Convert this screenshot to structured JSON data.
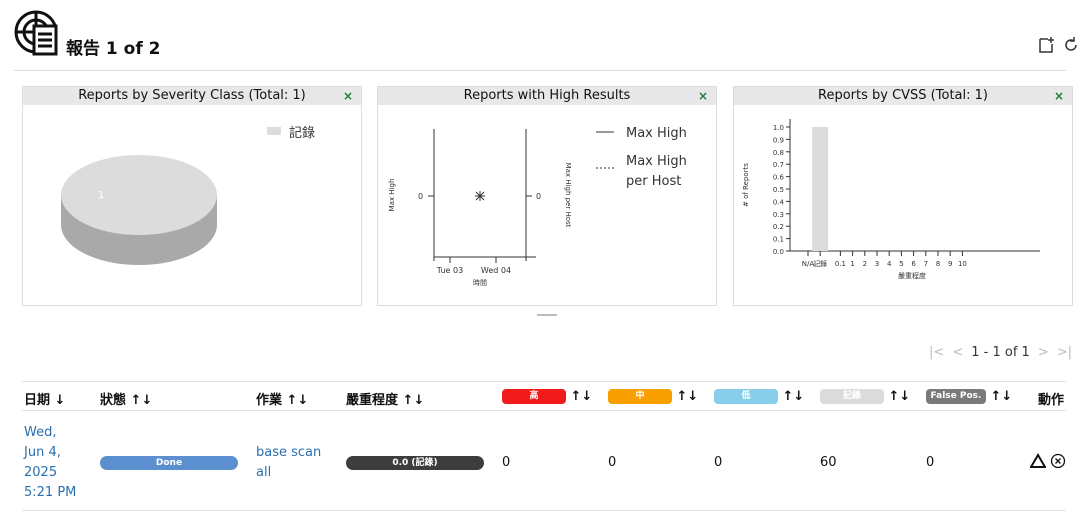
{
  "header": {
    "title": "報告 1 of 2",
    "logo_icon": "report-radar-icon",
    "icons": [
      "new-note-icon",
      "refresh-icon"
    ]
  },
  "panels": [
    {
      "title": "Reports by Severity Class (Total: 1)",
      "close": "×",
      "chart_data": {
        "type": "pie",
        "title": "Reports by Severity Class (Total: 1)",
        "slices": [
          {
            "label": "記錄",
            "value": 1
          }
        ],
        "legend": [
          "記錄"
        ],
        "colors": [
          "#d8d8d8"
        ]
      }
    },
    {
      "title": "Reports with High Results",
      "close": "×",
      "chart_data": {
        "type": "line",
        "title": "Reports with High Results",
        "xlabel": "時間",
        "ylabel": "Max High",
        "y2label": "Max High per Host",
        "x_ticks": [
          "Tue 03",
          "Wed 04"
        ],
        "y_ticks": [
          "0"
        ],
        "y2_ticks": [
          "0"
        ],
        "series": [
          {
            "name": "Max High",
            "values": [
              0
            ]
          },
          {
            "name": "Max High per Host",
            "values": [
              0
            ]
          }
        ],
        "legend": [
          "Max High",
          "Max High per Host"
        ]
      }
    },
    {
      "title": "Reports by CVSS (Total: 1)",
      "close": "×",
      "chart_data": {
        "type": "bar",
        "title": "Reports by CVSS (Total: 1)",
        "xlabel": "嚴重程度",
        "ylabel": "# of Reports",
        "categories": [
          "N/A",
          "記錄",
          "0.1",
          "1",
          "2",
          "3",
          "4",
          "5",
          "6",
          "7",
          "8",
          "9",
          "10"
        ],
        "values": [
          0,
          1,
          0,
          0,
          0,
          0,
          0,
          0,
          0,
          0,
          0,
          0,
          0
        ],
        "y_ticks": [
          "0.0",
          "0.1",
          "0.2",
          "0.3",
          "0.4",
          "0.5",
          "0.6",
          "0.7",
          "0.8",
          "0.9",
          "1.0"
        ],
        "ylim": [
          0,
          1.0
        ]
      }
    }
  ],
  "pagination": {
    "text": "1 - 1 of 1",
    "first": "|<",
    "prev": "<",
    "next": ">",
    "last": ">|"
  },
  "table": {
    "columns": {
      "date": "日期",
      "status": "狀態",
      "task": "作業",
      "severity": "嚴重程度",
      "high": "高",
      "medium": "中",
      "low": "低",
      "log": "記錄",
      "false_pos": "False Pos.",
      "actions": "動作"
    },
    "sort_icons": {
      "date": "↓",
      "other": "↑↓"
    },
    "colors": {
      "high": "#f21b1b",
      "medium": "#f9a000",
      "low": "#87ceeb",
      "log": "#dcdcdc",
      "false_pos": "#7a7a7a"
    },
    "rows": [
      {
        "date": [
          "Wed,",
          "Jun 4,",
          "2025",
          "5:21 PM"
        ],
        "status": "Done",
        "task": "base scan all",
        "severity": "0.0 (記錄)",
        "high": "0",
        "medium": "0",
        "low": "0",
        "log": "60",
        "false_pos": "0",
        "actions": [
          "delta-icon",
          "delete-icon"
        ]
      }
    ]
  }
}
